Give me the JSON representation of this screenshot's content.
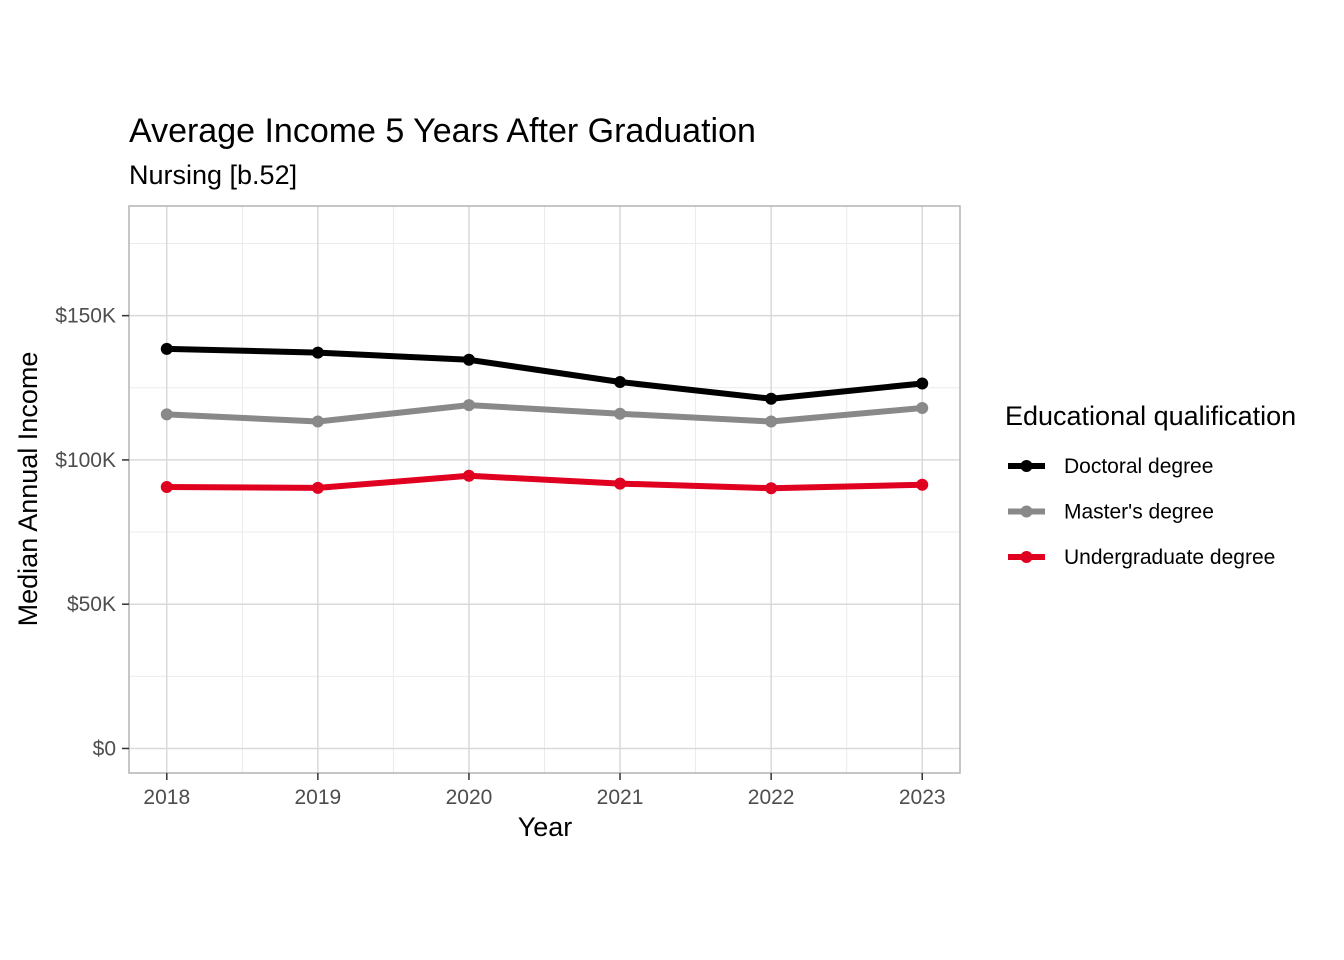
{
  "chart_data": {
    "type": "line",
    "title": "Average Income 5 Years After Graduation",
    "subtitle": "Nursing [b.52]",
    "xlabel": "Year",
    "ylabel": "Median Annual Income",
    "x": [
      2018,
      2019,
      2020,
      2021,
      2022,
      2023
    ],
    "x_tick_labels": [
      "2018",
      "2019",
      "2020",
      "2021",
      "2022",
      "2023"
    ],
    "y_ticks": [
      0,
      50000,
      100000,
      150000
    ],
    "y_tick_labels": [
      "$0",
      "$50K",
      "$100K",
      "$150K"
    ],
    "ylim": [
      -8500,
      188000
    ],
    "xlim": [
      2017.75,
      2023.25
    ],
    "grid": true,
    "legend": {
      "title": "Educational qualification",
      "position": "right"
    },
    "series": [
      {
        "name": "Doctoral degree",
        "color": "#000000",
        "values": [
          138500,
          137200,
          134700,
          127000,
          121200,
          126500
        ]
      },
      {
        "name": "Master's degree",
        "color": "#898989",
        "values": [
          115800,
          113300,
          119000,
          116000,
          113300,
          118000
        ]
      },
      {
        "name": "Undergraduate degree",
        "color": "#e00020",
        "values": [
          90600,
          90300,
          94500,
          91800,
          90200,
          91400
        ]
      }
    ]
  }
}
